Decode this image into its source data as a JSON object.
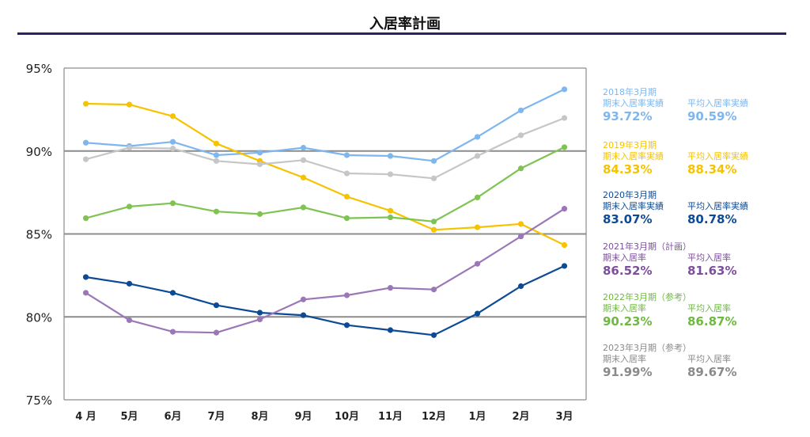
{
  "title": "入居率計画",
  "chart_data": {
    "type": "line",
    "categories": [
      "4 月",
      "5月",
      "6月",
      "7月",
      "8月",
      "9月",
      "10月",
      "11月",
      "12月",
      "1月",
      "2月",
      "3月"
    ],
    "ylim": [
      75,
      95
    ],
    "yticks": [
      "75%",
      "80%",
      "85%",
      "90%",
      "95%"
    ],
    "ytick_values": [
      75,
      80,
      85,
      90,
      95
    ],
    "grid": "horizontal",
    "legend_position": "right",
    "series": [
      {
        "key": "s2018",
        "color": "#7eb6ee",
        "values": [
          90.5,
          90.3,
          90.55,
          89.75,
          89.9,
          90.2,
          89.75,
          89.7,
          89.4,
          90.85,
          92.45,
          93.72
        ]
      },
      {
        "key": "s2019",
        "color": "#f6c300",
        "values": [
          92.85,
          92.8,
          92.1,
          90.45,
          89.4,
          88.4,
          87.25,
          86.4,
          85.25,
          85.4,
          85.6,
          84.33
        ]
      },
      {
        "key": "s2020",
        "color": "#0d4a96",
        "values": [
          82.4,
          82.0,
          81.45,
          80.7,
          80.25,
          80.1,
          79.5,
          79.2,
          78.9,
          80.2,
          81.85,
          83.07
        ]
      },
      {
        "key": "s2021",
        "color": "#9b77b8",
        "values": [
          81.45,
          79.8,
          79.1,
          79.05,
          79.85,
          81.05,
          81.3,
          81.75,
          81.65,
          83.2,
          84.85,
          86.52
        ]
      },
      {
        "key": "s2022",
        "color": "#7fc352",
        "values": [
          85.95,
          86.65,
          86.85,
          86.35,
          86.2,
          86.6,
          85.95,
          86.0,
          85.75,
          87.2,
          88.95,
          90.23
        ]
      },
      {
        "key": "s2023",
        "color": "#c6c6c6",
        "values": [
          89.5,
          90.2,
          90.15,
          89.4,
          89.2,
          89.45,
          88.65,
          88.6,
          88.35,
          89.7,
          90.95,
          91.99
        ]
      }
    ]
  },
  "legend": [
    {
      "color": "#7eb6ee",
      "title": "2018年3月期",
      "label_end": "期末入居率実績",
      "label_avg": "平均入居率実績",
      "value_end": "93.72%",
      "value_avg": "90.59%"
    },
    {
      "color": "#f6c300",
      "title": "2019年3月期",
      "label_end": "期末入居率実績",
      "label_avg": "平均入居率実績",
      "value_end": "84.33%",
      "value_avg": "88.34%"
    },
    {
      "color": "#0d4a96",
      "title": "2020年3月期",
      "label_end": "期末入居率実績",
      "label_avg": "平均入居率実績",
      "value_end": "83.07%",
      "value_avg": "80.78%"
    },
    {
      "color": "#7c4f9d",
      "title": "2021年3月期（計画）",
      "label_end": "期末入居率",
      "label_avg": "平均入居率",
      "value_end": "86.52%",
      "value_avg": "81.63%"
    },
    {
      "color": "#6fb841",
      "title": "2022年3月期（参考）",
      "label_end": "期末入居率",
      "label_avg": "平均入居率",
      "value_end": "90.23%",
      "value_avg": "86.87%"
    },
    {
      "color": "#8a8a8a",
      "title": "2023年3月期（参考）",
      "label_end": "期末入居率",
      "label_avg": "平均入居率",
      "value_end": "91.99%",
      "value_avg": "89.67%"
    }
  ]
}
